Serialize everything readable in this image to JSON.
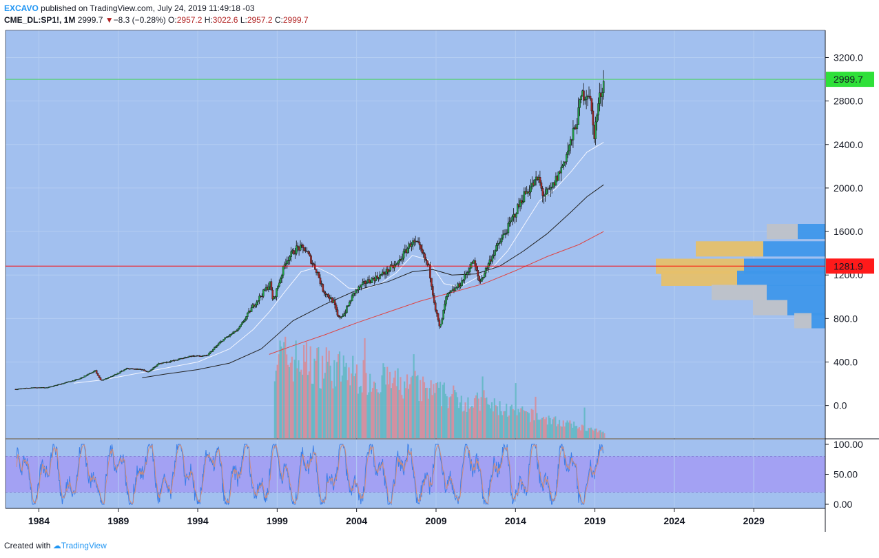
{
  "header": {
    "username": "EXCAVO",
    "published_text": "published on TradingView.com, July 24, 2019 11:49:18 -03",
    "symbol": "CME_DL:SP1!, 1M",
    "last": "2999.7",
    "change_arrow": "▼",
    "change": "−8.3 (−0.28%)",
    "o_label": "O:",
    "o_val": "2957.2",
    "h_label": "H:",
    "h_val": "3022.6",
    "l_label": "L:",
    "l_val": "2957.2",
    "c_label": "C:",
    "c_val": "2999.7"
  },
  "footer": {
    "created_with": "Created with",
    "brand": "TradingView"
  },
  "colors": {
    "background": "#a2c0ef",
    "osc_band": "#a3a1f3",
    "bull": "#22a34a",
    "bear": "#a52a2a",
    "price_line": "#ff0000",
    "last_line": "#4cd163",
    "sma_white": "#f3f5ff",
    "sma_black": "#222222",
    "sma_red": "#dd4444",
    "vp_up": "#3f97ea",
    "vp_down": "#e6c06a",
    "vp_gray": "#bfc2c8"
  },
  "chart_data": {
    "type": "candlestick",
    "price_axis": {
      "ticks": [
        "3200.0",
        "2800.0",
        "2400.0",
        "2000.0",
        "1600.0",
        "1200.0",
        "800.0",
        "400.0",
        "0.0"
      ],
      "ylim": [
        -300,
        3450
      ]
    },
    "osc_axis": {
      "ticks": [
        "100.00",
        "50.00",
        "0.00"
      ],
      "band": [
        20,
        80
      ]
    },
    "x_axis": {
      "ticks": [
        "1984",
        "1989",
        "1994",
        "1999",
        "2004",
        "2009",
        "2014",
        "2019",
        "2024",
        "2029"
      ],
      "xlim": [
        1981.9,
        2033.5
      ]
    },
    "last_price_label": "2999.7",
    "hline_label": "1281.9",
    "hline_value": 1281.9,
    "price_path": [
      [
        1982.5,
        150
      ],
      [
        1983.5,
        165
      ],
      [
        1984.5,
        165
      ],
      [
        1985.5,
        205
      ],
      [
        1986.5,
        245
      ],
      [
        1987.5,
        320
      ],
      [
        1987.85,
        230
      ],
      [
        1988.5,
        265
      ],
      [
        1989.5,
        340
      ],
      [
        1990.5,
        330
      ],
      [
        1990.8,
        305
      ],
      [
        1991.5,
        385
      ],
      [
        1992.5,
        415
      ],
      [
        1993.5,
        455
      ],
      [
        1994.5,
        455
      ],
      [
        1995.5,
        600
      ],
      [
        1996.5,
        700
      ],
      [
        1997.5,
        930
      ],
      [
        1998.5,
        1120
      ],
      [
        1998.7,
        960
      ],
      [
        1999.5,
        1330
      ],
      [
        2000.2,
        1450
      ],
      [
        2000.7,
        1440
      ],
      [
        2001.5,
        1220
      ],
      [
        2001.8,
        1070
      ],
      [
        2002.5,
        950
      ],
      [
        2002.8,
        800
      ],
      [
        2003.2,
        850
      ],
      [
        2003.8,
        1040
      ],
      [
        2004.5,
        1130
      ],
      [
        2005.5,
        1200
      ],
      [
        2006.5,
        1300
      ],
      [
        2007.4,
        1500
      ],
      [
        2007.8,
        1480
      ],
      [
        2008.5,
        1270
      ],
      [
        2008.9,
        900
      ],
      [
        2009.2,
        700
      ],
      [
        2009.6,
        1000
      ],
      [
        2010.5,
        1120
      ],
      [
        2011.3,
        1330
      ],
      [
        2011.7,
        1130
      ],
      [
        2012.5,
        1380
      ],
      [
        2013.5,
        1640
      ],
      [
        2014.5,
        1940
      ],
      [
        2015.4,
        2090
      ],
      [
        2015.7,
        1930
      ],
      [
        2016.2,
        1980
      ],
      [
        2016.9,
        2200
      ],
      [
        2017.5,
        2450
      ],
      [
        2017.9,
        2670
      ],
      [
        2018.1,
        2850
      ],
      [
        2018.6,
        2880
      ],
      [
        2018.9,
        2480
      ],
      [
        2019.2,
        2800
      ],
      [
        2019.55,
        3000
      ]
    ],
    "sma_white": [
      [
        1986.2,
        205
      ],
      [
        1988,
        235
      ],
      [
        1990,
        290
      ],
      [
        1992,
        345
      ],
      [
        1994,
        400
      ],
      [
        1996,
        520
      ],
      [
        1997.5,
        700
      ],
      [
        1998.5,
        860
      ],
      [
        1999.5,
        1050
      ],
      [
        2000.5,
        1230
      ],
      [
        2001.5,
        1270
      ],
      [
        2002.5,
        1200
      ],
      [
        2003.5,
        1080
      ],
      [
        2004.5,
        1070
      ],
      [
        2005.5,
        1120
      ],
      [
        2006.5,
        1220
      ],
      [
        2007.5,
        1380
      ],
      [
        2008.5,
        1340
      ],
      [
        2009.5,
        1120
      ],
      [
        2010.5,
        1090
      ],
      [
        2011.5,
        1170
      ],
      [
        2012.5,
        1260
      ],
      [
        2013.5,
        1420
      ],
      [
        2014.5,
        1650
      ],
      [
        2015.5,
        1880
      ],
      [
        2016.5,
        1990
      ],
      [
        2017.5,
        2150
      ],
      [
        2018.5,
        2330
      ],
      [
        2019.55,
        2420
      ]
    ],
    "sma_black": [
      [
        1990.5,
        255
      ],
      [
        1992,
        290
      ],
      [
        1994,
        330
      ],
      [
        1996,
        390
      ],
      [
        1998,
        520
      ],
      [
        2000,
        780
      ],
      [
        2002,
        930
      ],
      [
        2004,
        1060
      ],
      [
        2006,
        1140
      ],
      [
        2007.5,
        1230
      ],
      [
        2008.8,
        1250
      ],
      [
        2010,
        1200
      ],
      [
        2011.5,
        1210
      ],
      [
        2013,
        1280
      ],
      [
        2014.5,
        1420
      ],
      [
        2016,
        1580
      ],
      [
        2017.5,
        1780
      ],
      [
        2018.5,
        1920
      ],
      [
        2019.55,
        2030
      ]
    ],
    "sma_red": [
      [
        1998.5,
        470
      ],
      [
        2000,
        550
      ],
      [
        2002,
        650
      ],
      [
        2004,
        760
      ],
      [
        2006,
        860
      ],
      [
        2008,
        960
      ],
      [
        2010,
        1040
      ],
      [
        2012,
        1120
      ],
      [
        2014,
        1240
      ],
      [
        2016,
        1370
      ],
      [
        2018,
        1480
      ],
      [
        2019.55,
        1600
      ]
    ],
    "volume_profile": [
      {
        "price": 1600,
        "gray": 45,
        "blue": 40,
        "gold": 0
      },
      {
        "price": 1440,
        "gray": 0,
        "blue": 90,
        "gold": 98
      },
      {
        "price": 1280,
        "gray": 0,
        "blue": 118,
        "gold": 128
      },
      {
        "price": 1170,
        "gray": 0,
        "blue": 128,
        "gold": 110
      },
      {
        "price": 1040,
        "gray": 80,
        "blue": 85,
        "gold": 0
      },
      {
        "price": 900,
        "gray": 50,
        "blue": 55,
        "gold": 0
      },
      {
        "price": 780,
        "gray": 25,
        "blue": 20,
        "gold": 0
      }
    ]
  }
}
